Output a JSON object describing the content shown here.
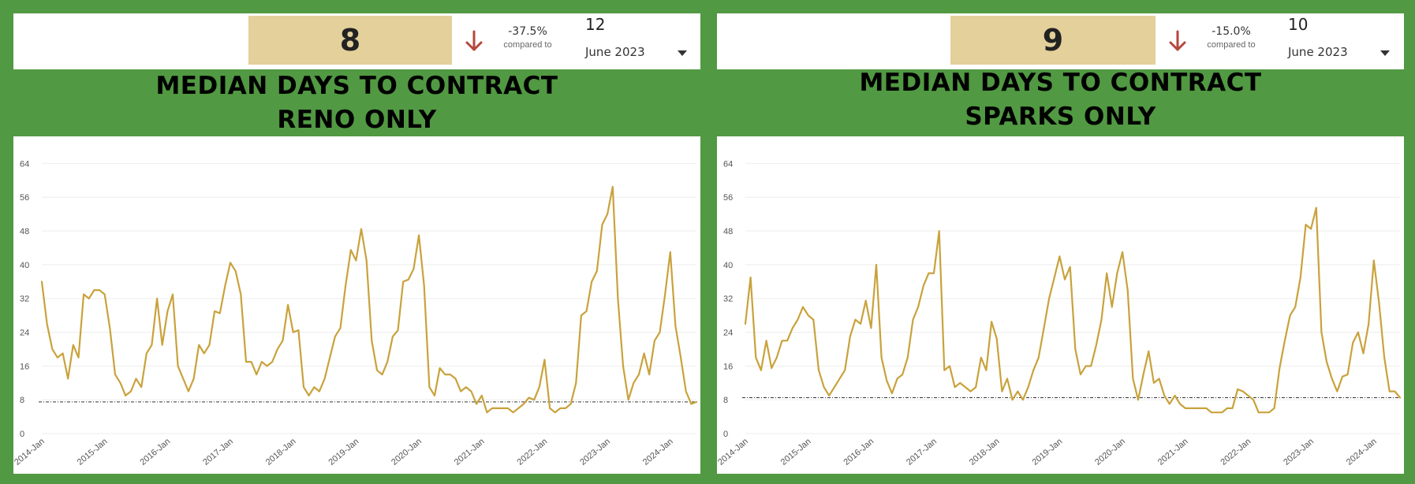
{
  "panels": [
    {
      "kpi": {
        "value": "8",
        "delta": "-37.5%",
        "compared_label": "compared to",
        "reference_value": "12",
        "period_selected": "June 2023",
        "delta_color": "#b5473d"
      },
      "title_line1": "MEDIAN DAYS TO CONTRACT",
      "title_line2": "RENO ONLY"
    },
    {
      "kpi": {
        "value": "9",
        "delta": "-15.0%",
        "compared_label": "compared to",
        "reference_value": "10",
        "period_selected": "June 2023",
        "delta_color": "#b5473d"
      },
      "title_line1": "MEDIAN DAYS TO CONTRACT",
      "title_line2": "SPARKS ONLY"
    }
  ],
  "colors": {
    "background": "#519942",
    "kpi_fill": "#e3d09a",
    "line": "#c9a23c",
    "reference_line": "#333333"
  },
  "chart_data": [
    {
      "type": "line",
      "title": "MEDIAN DAYS TO CONTRACT RENO ONLY",
      "xlabel": "",
      "ylabel": "",
      "ylim": [
        0,
        68
      ],
      "y_ticks": [
        0,
        8,
        16,
        24,
        32,
        40,
        48,
        56,
        64
      ],
      "x_tick_labels": [
        "2014-Jan",
        "2015-Jan",
        "2016-Jan",
        "2017-Jan",
        "2018-Jan",
        "2019-Jan",
        "2020-Jan",
        "2021-Jan",
        "2022-Jan",
        "2023-Jan",
        "2024-Jan"
      ],
      "x_start": "2014-Jan",
      "grid": true,
      "reference_line": 7.5,
      "series": [
        {
          "values": [
            36,
            26,
            20,
            18,
            19,
            13,
            21,
            18,
            33,
            32,
            34,
            34,
            33,
            25,
            14,
            12,
            9,
            10,
            13,
            11,
            19,
            21,
            32,
            21,
            29,
            33,
            16,
            13,
            10,
            13,
            21,
            19,
            21,
            29,
            28.5,
            35,
            40.5,
            38.5,
            33,
            17,
            17,
            14,
            17,
            16,
            17,
            20,
            22,
            30.5,
            24,
            24.5,
            11,
            9,
            11,
            10,
            13,
            18,
            23,
            25,
            35,
            43.5,
            41,
            48.5,
            41,
            22,
            15,
            14,
            17,
            23,
            24.5,
            36,
            36.5,
            39,
            47,
            35,
            11,
            9,
            15.5,
            14,
            14,
            13,
            10,
            11,
            10,
            7,
            9,
            5,
            6,
            6,
            6,
            6,
            5,
            6,
            7,
            8.5,
            8,
            11,
            17.5,
            6,
            5,
            6,
            6,
            7,
            12,
            28,
            29,
            36,
            38.5,
            49.5,
            52,
            58.5,
            32,
            16,
            8,
            12,
            14,
            19,
            14,
            22,
            24,
            33,
            43,
            25.5,
            18,
            10,
            7,
            7.5
          ]
        }
      ]
    },
    {
      "type": "line",
      "title": "MEDIAN DAYS TO CONTRACT SPARKS ONLY",
      "xlabel": "",
      "ylabel": "",
      "ylim": [
        0,
        68
      ],
      "y_ticks": [
        0,
        8,
        16,
        24,
        32,
        40,
        48,
        56,
        64
      ],
      "x_tick_labels": [
        "2014-Jan",
        "2015-Jan",
        "2016-Jan",
        "2017-Jan",
        "2018-Jan",
        "2019-Jan",
        "2020-Jan",
        "2021-Jan",
        "2022-Jan",
        "2023-Jan",
        "2024-Jan"
      ],
      "x_start": "2014-Jan",
      "grid": true,
      "reference_line": 8.5,
      "series": [
        {
          "values": [
            26,
            37,
            18,
            15,
            22,
            15.5,
            18,
            22,
            22,
            25,
            27,
            30,
            28,
            27,
            15,
            11,
            9,
            11,
            13,
            15,
            23,
            27,
            26,
            31.5,
            25,
            40,
            18,
            12.5,
            9.5,
            13,
            14,
            18,
            27,
            30,
            35,
            38,
            38,
            48,
            15,
            16,
            11,
            12,
            11,
            10,
            11,
            18,
            15,
            26.5,
            22.5,
            10,
            13,
            8,
            10,
            8,
            11,
            15,
            18,
            25,
            32,
            37,
            42,
            36.5,
            39.5,
            20,
            14,
            16,
            16,
            21,
            27,
            38,
            30,
            38,
            43,
            34,
            13,
            8,
            14,
            19.5,
            12,
            13,
            9,
            7,
            9,
            7,
            6,
            6,
            6,
            6,
            6,
            5,
            5,
            5,
            6,
            6,
            10.5,
            10,
            9,
            8,
            5,
            5,
            5,
            6,
            15.5,
            22,
            28,
            30,
            37,
            49.5,
            48.5,
            53.5,
            24,
            17,
            13,
            10,
            13.5,
            14,
            21.5,
            24,
            19,
            26,
            41,
            31,
            18,
            10,
            10,
            8.5
          ]
        }
      ]
    }
  ]
}
